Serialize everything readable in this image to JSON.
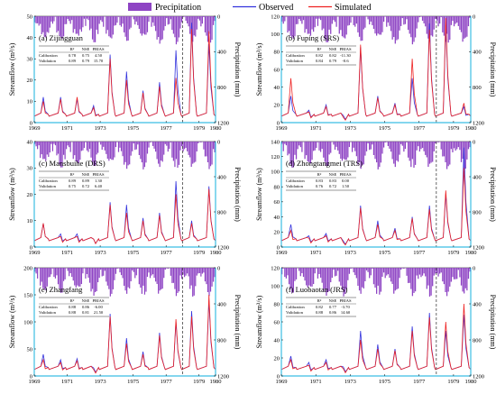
{
  "legend": {
    "precipitation": "Precipitation",
    "observed": "Observed",
    "simulated": "Simulated"
  },
  "colors": {
    "precipitation": "#8e44c4",
    "observed": "#3333dd",
    "simulated": "#ee2222",
    "axis": "#3bbde3"
  },
  "chart_data": [
    {
      "type": "line",
      "title": "(a) Zijingguan",
      "ylabel": "Streamflow (m³/s)",
      "y2label": "Precipitation (mm)",
      "ylim": [
        0,
        50
      ],
      "yticks": [
        "0",
        "10",
        "20",
        "30",
        "40",
        "50"
      ],
      "y2lim": [
        0,
        1200
      ],
      "y2ticks": [
        "0",
        "400",
        "800",
        "1200"
      ],
      "xlim": [
        1969,
        1980
      ],
      "xticks": [
        "1969",
        "1971",
        "1973",
        "1975",
        "1977",
        "1979",
        "1980"
      ],
      "split_year": 1978,
      "peaks": [
        {
          "x": 1969.55,
          "obs": 12,
          "sim": 10
        },
        {
          "x": 1970.6,
          "obs": 12,
          "sim": 11
        },
        {
          "x": 1971.6,
          "obs": 11,
          "sim": 12
        },
        {
          "x": 1972.6,
          "obs": 8,
          "sim": 7
        },
        {
          "x": 1973.6,
          "obs": 32,
          "sim": 30
        },
        {
          "x": 1974.6,
          "obs": 24,
          "sim": 20
        },
        {
          "x": 1975.6,
          "obs": 15,
          "sim": 14
        },
        {
          "x": 1976.6,
          "obs": 19,
          "sim": 17
        },
        {
          "x": 1977.6,
          "obs": 34,
          "sim": 21
        },
        {
          "x": 1978.55,
          "obs": 47,
          "sim": 44
        },
        {
          "x": 1979.6,
          "obs": 37,
          "sim": 43
        }
      ],
      "stats": {
        "header": [
          "R²",
          "NSE",
          "PBIAS"
        ],
        "rows": [
          {
            "label": "Calibration",
            "values": [
              "0.78",
              "0.75",
              "4.50"
            ]
          },
          {
            "label": "Validation",
            "values": [
              "0.89",
              "0.79",
              "15.70"
            ]
          }
        ]
      }
    },
    {
      "type": "line",
      "title": "(b) Fuping (SRS)",
      "ylabel": "Streamflow (m³/s)",
      "y2label": "Precipitation (mm)",
      "ylim": [
        0,
        120
      ],
      "yticks": [
        "0",
        "20",
        "40",
        "60",
        "80",
        "100",
        "120"
      ],
      "y2lim": [
        0,
        1200
      ],
      "y2ticks": [
        "0",
        "400",
        "800",
        "1200"
      ],
      "xlim": [
        1969,
        1980
      ],
      "xticks": [
        "1969",
        "1971",
        "1973",
        "1975",
        "1977",
        "1979",
        "1980"
      ],
      "split_year": 1978,
      "peaks": [
        {
          "x": 1969.55,
          "obs": 30,
          "sim": 50
        },
        {
          "x": 1970.6,
          "obs": 14,
          "sim": 12
        },
        {
          "x": 1971.6,
          "obs": 20,
          "sim": 18
        },
        {
          "x": 1972.6,
          "obs": 8,
          "sim": 6
        },
        {
          "x": 1973.6,
          "obs": 85,
          "sim": 88
        },
        {
          "x": 1974.6,
          "obs": 30,
          "sim": 28
        },
        {
          "x": 1975.6,
          "obs": 22,
          "sim": 20
        },
        {
          "x": 1976.6,
          "obs": 50,
          "sim": 72
        },
        {
          "x": 1977.6,
          "obs": 112,
          "sim": 105
        },
        {
          "x": 1978.55,
          "obs": 110,
          "sim": 118
        },
        {
          "x": 1979.6,
          "obs": 18,
          "sim": 22
        }
      ],
      "stats": {
        "header": [
          "R²",
          "NSE",
          "PBIAS"
        ],
        "rows": [
          {
            "label": "Calibration",
            "values": [
              "0.82",
              "0.82",
              "-11.30"
            ]
          },
          {
            "label": "Validation",
            "values": [
              "0.84",
              "0.79",
              "-0.6"
            ]
          }
        ]
      }
    },
    {
      "type": "line",
      "title": "(c) Mansbuihe (DRS)",
      "ylabel": "Streamflow (m³/s)",
      "y2label": "Precipitation (mm)",
      "ylim": [
        0,
        40
      ],
      "yticks": [
        "0",
        "10",
        "20",
        "30",
        "40"
      ],
      "y2lim": [
        0,
        1200
      ],
      "y2ticks": [
        "0",
        "400",
        "800",
        "1200"
      ],
      "xlim": [
        1969,
        1980
      ],
      "xticks": [
        "1969",
        "1971",
        "1973",
        "1975",
        "1977",
        "1979",
        "1980"
      ],
      "split_year": 1978,
      "peaks": [
        {
          "x": 1969.55,
          "obs": 9,
          "sim": 9
        },
        {
          "x": 1970.6,
          "obs": 5,
          "sim": 4
        },
        {
          "x": 1971.6,
          "obs": 5,
          "sim": 4
        },
        {
          "x": 1972.6,
          "obs": 3,
          "sim": 3
        },
        {
          "x": 1973.6,
          "obs": 17,
          "sim": 16
        },
        {
          "x": 1974.6,
          "obs": 16,
          "sim": 13
        },
        {
          "x": 1975.6,
          "obs": 11,
          "sim": 10
        },
        {
          "x": 1976.6,
          "obs": 13,
          "sim": 12
        },
        {
          "x": 1977.6,
          "obs": 25,
          "sim": 20
        },
        {
          "x": 1978.55,
          "obs": 10,
          "sim": 9
        },
        {
          "x": 1979.6,
          "obs": 23,
          "sim": 22
        }
      ],
      "stats": {
        "header": [
          "R²",
          "NSE",
          "PBIAS"
        ],
        "rows": [
          {
            "label": "Calibration",
            "values": [
              "0.89",
              "0.89",
              "1.30"
            ]
          },
          {
            "label": "Validation",
            "values": [
              "0.75",
              "0.72",
              "6.40"
            ]
          }
        ]
      }
    },
    {
      "type": "line",
      "title": "(d) Zhongtangmei (TRS)",
      "ylabel": "Streamflow (m³/s)",
      "y2label": "Precipitation (mm)",
      "ylim": [
        0,
        140
      ],
      "yticks": [
        "0",
        "20",
        "40",
        "60",
        "80",
        "100",
        "120",
        "140"
      ],
      "y2lim": [
        0,
        1200
      ],
      "y2ticks": [
        "0",
        "400",
        "800",
        "1200"
      ],
      "xlim": [
        1969,
        1980
      ],
      "xticks": [
        "1969",
        "1971",
        "1973",
        "1975",
        "1977",
        "1979",
        "1980"
      ],
      "split_year": 1978,
      "peaks": [
        {
          "x": 1969.55,
          "obs": 30,
          "sim": 22
        },
        {
          "x": 1970.6,
          "obs": 15,
          "sim": 12
        },
        {
          "x": 1971.6,
          "obs": 18,
          "sim": 15
        },
        {
          "x": 1972.6,
          "obs": 8,
          "sim": 6
        },
        {
          "x": 1973.6,
          "obs": 55,
          "sim": 52
        },
        {
          "x": 1974.6,
          "obs": 35,
          "sim": 30
        },
        {
          "x": 1975.6,
          "obs": 25,
          "sim": 22
        },
        {
          "x": 1976.6,
          "obs": 40,
          "sim": 38
        },
        {
          "x": 1977.6,
          "obs": 55,
          "sim": 50
        },
        {
          "x": 1978.55,
          "obs": 70,
          "sim": 75
        },
        {
          "x": 1979.6,
          "obs": 132,
          "sim": 105
        }
      ],
      "stats": {
        "header": [
          "R²",
          "NSE",
          "PBIAS"
        ],
        "rows": [
          {
            "label": "Calibration",
            "values": [
              "0.83",
              "0.83",
              "0.00"
            ]
          },
          {
            "label": "Validation",
            "values": [
              "0.76",
              "0.72",
              "1.50"
            ]
          }
        ]
      }
    },
    {
      "type": "line",
      "title": "(e) Zhangfang",
      "ylabel": "Streamflow (m³/s)",
      "y2label": "Precipitation (mm)",
      "ylim": [
        0,
        200
      ],
      "yticks": [
        "0",
        "50",
        "100",
        "150",
        "200"
      ],
      "y2lim": [
        0,
        1200
      ],
      "y2ticks": [
        "0",
        "400",
        "800",
        "1200"
      ],
      "xlim": [
        1969,
        1980
      ],
      "xticks": [
        "1969",
        "1971",
        "1973",
        "1975",
        "1977",
        "1979",
        "1980"
      ],
      "split_year": 1978,
      "peaks": [
        {
          "x": 1969.55,
          "obs": 40,
          "sim": 30
        },
        {
          "x": 1970.6,
          "obs": 30,
          "sim": 25
        },
        {
          "x": 1971.6,
          "obs": 32,
          "sim": 28
        },
        {
          "x": 1972.6,
          "obs": 15,
          "sim": 12
        },
        {
          "x": 1973.6,
          "obs": 115,
          "sim": 110
        },
        {
          "x": 1974.6,
          "obs": 70,
          "sim": 60
        },
        {
          "x": 1975.6,
          "obs": 45,
          "sim": 40
        },
        {
          "x": 1976.6,
          "obs": 80,
          "sim": 75
        },
        {
          "x": 1977.6,
          "obs": 100,
          "sim": 105
        },
        {
          "x": 1978.55,
          "obs": 120,
          "sim": 110
        },
        {
          "x": 1979.6,
          "obs": 140,
          "sim": 150
        }
      ],
      "stats": {
        "header": [
          "R²",
          "NSE",
          "PBIAS"
        ],
        "rows": [
          {
            "label": "Calibration",
            "values": [
              "0.88",
              "0.86",
              "-6.00"
            ]
          },
          {
            "label": "Validation",
            "values": [
              "0.88",
              "0.81",
              "21.50"
            ]
          }
        ]
      }
    },
    {
      "type": "line",
      "title": "(f) Luobaotan (JRS)",
      "ylabel": "Streamflow (m³/s)",
      "y2label": "Precipitation (mm)",
      "ylim": [
        0,
        120
      ],
      "yticks": [
        "0",
        "20",
        "40",
        "60",
        "80",
        "100",
        "120"
      ],
      "y2lim": [
        0,
        1200
      ],
      "y2ticks": [
        "0",
        "400",
        "800",
        "1200"
      ],
      "xlim": [
        1969,
        1980
      ],
      "xticks": [
        "1969",
        "1971",
        "1973",
        "1975",
        "1977",
        "1979",
        "1980"
      ],
      "split_year": 1978,
      "peaks": [
        {
          "x": 1969.55,
          "obs": 22,
          "sim": 18
        },
        {
          "x": 1970.6,
          "obs": 15,
          "sim": 12
        },
        {
          "x": 1971.6,
          "obs": 18,
          "sim": 15
        },
        {
          "x": 1972.6,
          "obs": 10,
          "sim": 8
        },
        {
          "x": 1973.6,
          "obs": 50,
          "sim": 40
        },
        {
          "x": 1974.6,
          "obs": 35,
          "sim": 30
        },
        {
          "x": 1975.6,
          "obs": 30,
          "sim": 28
        },
        {
          "x": 1976.6,
          "obs": 55,
          "sim": 50
        },
        {
          "x": 1977.6,
          "obs": 70,
          "sim": 65
        },
        {
          "x": 1978.55,
          "obs": 50,
          "sim": 60
        },
        {
          "x": 1979.6,
          "obs": 68,
          "sim": 80
        }
      ],
      "stats": {
        "header": [
          "R²",
          "NSE",
          "PBIAS"
        ],
        "rows": [
          {
            "label": "Calibration",
            "values": [
              "0.82",
              "0.77",
              "-3.70"
            ]
          },
          {
            "label": "Validation",
            "values": [
              "0.88",
              "0.86",
              "14.60"
            ]
          }
        ]
      }
    }
  ]
}
